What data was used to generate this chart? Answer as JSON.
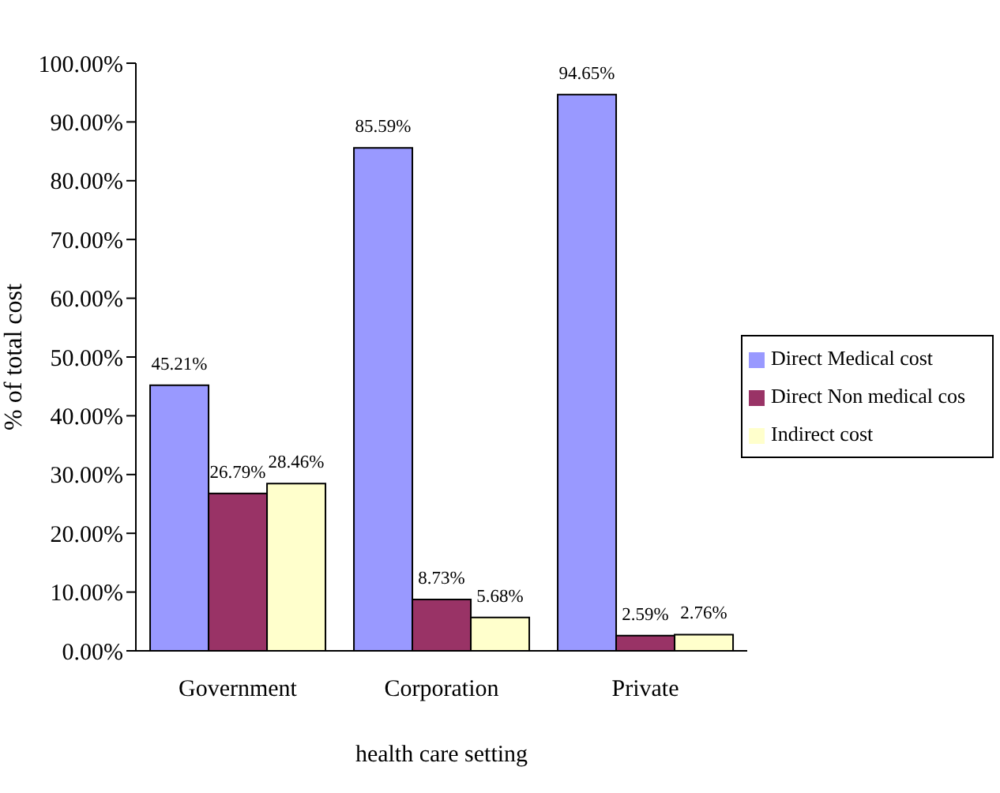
{
  "chart_data": {
    "type": "bar",
    "xlabel": "health care setting",
    "ylabel": "% of total cost",
    "categories": [
      "Government",
      "Corporation",
      "Private"
    ],
    "series": [
      {
        "name": "Direct Medical cost",
        "color": "#9999ff",
        "values": [
          45.21,
          85.59,
          94.65
        ],
        "value_labels": [
          "45.21%",
          "85.59%",
          "94.65%"
        ]
      },
      {
        "name": "Direct Non medical cos",
        "color": "#993366",
        "values": [
          26.79,
          8.73,
          2.59
        ],
        "value_labels": [
          "26.79%",
          "8.73%",
          "2.59%"
        ]
      },
      {
        "name": "Indirect cost",
        "color": "#ffffcc",
        "values": [
          28.46,
          5.68,
          2.76
        ],
        "value_labels": [
          "28.46%",
          "5.68%",
          "2.76%"
        ]
      }
    ],
    "ylim": [
      0,
      100
    ],
    "yticks": [
      {
        "value": 0,
        "label": "0.00%"
      },
      {
        "value": 10,
        "label": "10.00%"
      },
      {
        "value": 20,
        "label": "20.00%"
      },
      {
        "value": 30,
        "label": "30.00%"
      },
      {
        "value": 40,
        "label": "40.00%"
      },
      {
        "value": 50,
        "label": "50.00%"
      },
      {
        "value": 60,
        "label": "60.00%"
      },
      {
        "value": 70,
        "label": "70.00%"
      },
      {
        "value": 80,
        "label": "80.00%"
      },
      {
        "value": 90,
        "label": "90.00%"
      },
      {
        "value": 100,
        "label": "100.00%"
      }
    ],
    "grid": false,
    "legend": "right"
  }
}
